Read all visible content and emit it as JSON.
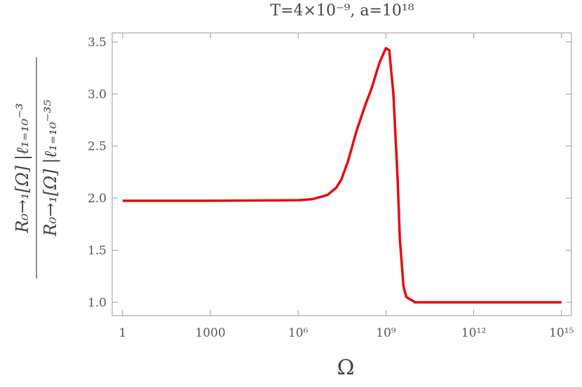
{
  "chart_data": {
    "type": "line",
    "title": "T=4×10⁻⁹,  a=10¹⁸",
    "x_label": "Ω",
    "y_label": {
      "numerator": "R₀→₁[Ω] |ℓ₁₌₁₀⁻³",
      "denominator": "R₀→₁[Ω] |ℓ₁₌₁₀⁻³⁵"
    },
    "x_scale": "log",
    "xlim": [
      0.44,
      2200000000000000.0
    ],
    "ylim": [
      0.872,
      3.587
    ],
    "xticks": [
      1,
      1000,
      {
        "value": 1000000.0,
        "label": "10⁶"
      },
      {
        "value": 1000000000.0,
        "label": "10⁹"
      },
      {
        "value": 1000000000000.0,
        "label": "10¹²"
      },
      {
        "value": 1000000000000000.0,
        "label": "10¹⁵"
      }
    ],
    "yticks": [
      {
        "value": 1,
        "label": "1.0"
      },
      1.5,
      {
        "value": 2,
        "label": "2.0"
      },
      2.5,
      {
        "value": 3,
        "label": "3.0"
      },
      3.5
    ],
    "series": [
      {
        "color": "#e8090c",
        "x": [
          1,
          1000,
          1000000.0,
          3000000.0,
          10000000.0,
          20000000.0,
          30000000.0,
          50000000.0,
          100000000.0,
          200000000.0,
          320000000.0,
          600000000.0,
          1000000000.0,
          1300000000.0,
          1800000000.0,
          2500000000.0,
          3000000000.0,
          4000000000.0,
          5000000000.0,
          10000000000.0,
          1000000000000.0,
          1000000000000000.0
        ],
        "values": [
          1.975,
          1.975,
          1.98,
          1.99,
          2.03,
          2.1,
          2.18,
          2.35,
          2.65,
          2.9,
          3.05,
          3.3,
          3.44,
          3.42,
          3.0,
          2.2,
          1.6,
          1.15,
          1.05,
          1.0,
          1.0,
          1.0
        ]
      }
    ]
  }
}
